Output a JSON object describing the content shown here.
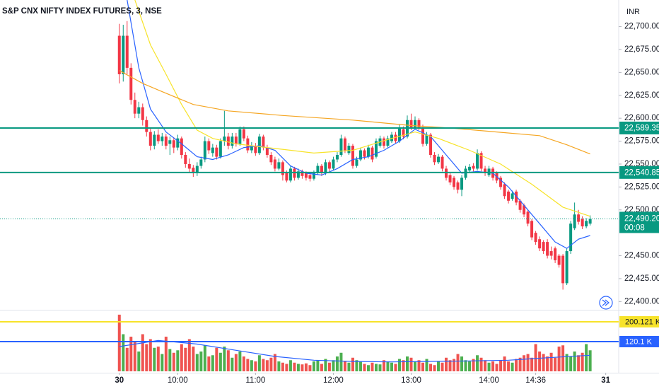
{
  "chart_data": {
    "type": "candlestick",
    "title": "S&P CNX NIFTY INDEX FUTURES, 3, NSE",
    "currency": "INR",
    "up_color": "#089981",
    "down_color": "#f23645",
    "volume_up_color": "#4caf50",
    "volume_down_color": "#ef5350",
    "x": [
      "09:15",
      "09:18",
      "09:21",
      "09:24",
      "09:27",
      "09:30",
      "09:33",
      "09:36",
      "09:39",
      "09:42",
      "09:45",
      "09:48",
      "09:51",
      "09:54",
      "09:57",
      "10:00",
      "10:03",
      "10:06",
      "10:09",
      "10:12",
      "10:15",
      "10:18",
      "10:21",
      "10:24",
      "10:27",
      "10:30",
      "10:33",
      "10:36",
      "10:39",
      "10:42",
      "10:45",
      "10:48",
      "10:51",
      "10:54",
      "10:57",
      "11:00",
      "11:03",
      "11:06",
      "11:09",
      "11:12",
      "11:15",
      "11:18",
      "11:21",
      "11:24",
      "11:27",
      "11:30",
      "11:33",
      "11:36",
      "11:39",
      "11:42",
      "11:45",
      "11:48",
      "11:51",
      "11:54",
      "11:57",
      "12:00",
      "12:03",
      "12:06",
      "12:09",
      "12:12",
      "12:15",
      "12:18",
      "12:21",
      "12:24",
      "12:27",
      "12:30",
      "12:33",
      "12:36",
      "12:39",
      "12:42",
      "12:45",
      "12:48",
      "12:51",
      "12:54",
      "12:57",
      "13:00",
      "13:03",
      "13:06",
      "13:09",
      "13:12",
      "13:15",
      "13:18",
      "13:21",
      "13:24",
      "13:27",
      "13:30",
      "13:33",
      "13:36",
      "13:39",
      "13:42",
      "13:45",
      "13:48",
      "13:51",
      "13:54",
      "13:57",
      "14:00",
      "14:03",
      "14:06",
      "14:09",
      "14:12",
      "14:15",
      "14:18",
      "14:21",
      "14:24",
      "14:27",
      "14:30",
      "14:33",
      "14:36",
      "14:39",
      "14:42",
      "14:45",
      "14:48",
      "14:51",
      "14:54",
      "14:57",
      "15:00",
      "15:03",
      "15:06",
      "15:09",
      "15:12",
      "15:15",
      "15:18"
    ],
    "open": [
      22690,
      22648,
      22690,
      22655,
      22620,
      22605,
      22612,
      22598,
      22585,
      22570,
      22582,
      22575,
      22580,
      22572,
      22576,
      22568,
      22578,
      22560,
      22550,
      22546,
      22540,
      22548,
      22555,
      22575,
      22562,
      22568,
      22558,
      22575,
      22580,
      22570,
      22580,
      22572,
      22588,
      22578,
      22565,
      22570,
      22562,
      22580,
      22568,
      22560,
      22555,
      22545,
      22552,
      22540,
      22532,
      22545,
      22535,
      22542,
      22540,
      22538,
      22534,
      22540,
      22548,
      22540,
      22552,
      22545,
      22555,
      22560,
      22578,
      22562,
      22570,
      22548,
      22555,
      22565,
      22558,
      22568,
      22558,
      22570,
      22578,
      22570,
      22575,
      22582,
      22575,
      22588,
      22580,
      22598,
      22590,
      22598,
      22590,
      22572,
      22582,
      22560,
      22552,
      22558,
      22545,
      22538,
      22535,
      22530,
      22522,
      22535,
      22543,
      22548,
      22545,
      22562,
      22545,
      22538,
      22545,
      22540,
      22535,
      22528,
      22520,
      22512,
      22520,
      22510,
      22505,
      22498,
      22488,
      22475,
      22468,
      22465,
      22465,
      22455,
      22458,
      22450,
      22450,
      22420,
      22455,
      22480,
      22495,
      22490,
      22482,
      22485
    ],
    "high": [
      22703,
      22702,
      22706,
      22660,
      22628,
      22618,
      22616,
      22602,
      22590,
      22586,
      22588,
      22584,
      22583,
      22580,
      22579,
      22582,
      22580,
      22563,
      22556,
      22549,
      22552,
      22558,
      22580,
      22578,
      22572,
      22571,
      22578,
      22608,
      22584,
      22584,
      22584,
      22591,
      22591,
      22581,
      22574,
      22573,
      22583,
      22582,
      22571,
      22563,
      22558,
      22556,
      22554,
      22543,
      22548,
      22547,
      22545,
      22544,
      22542,
      22540,
      22543,
      22551,
      22550,
      22555,
      22554,
      22558,
      22563,
      22582,
      22580,
      22573,
      22572,
      22558,
      22568,
      22567,
      22571,
      22570,
      22578,
      22581,
      22580,
      22581,
      22585,
      22585,
      22593,
      22591,
      22603,
      22605,
      22602,
      22600,
      22593,
      22585,
      22584,
      22563,
      22561,
      22560,
      22548,
      22540,
      22537,
      22532,
      22538,
      22548,
      22550,
      22551,
      22566,
      22564,
      22548,
      22548,
      22547,
      22542,
      22537,
      22530,
      22522,
      22521,
      22522,
      22512,
      22507,
      22500,
      22490,
      22477,
      22471,
      22467,
      22468,
      22460,
      22460,
      22452,
      22452,
      22458,
      22488,
      22508,
      22500,
      22493,
      22491,
      22494
    ],
    "low": [
      22638,
      22640,
      22648,
      22615,
      22600,
      22600,
      22592,
      22580,
      22565,
      22566,
      22572,
      22570,
      22566,
      22560,
      22562,
      22565,
      22556,
      22546,
      22541,
      22536,
      22537,
      22545,
      22552,
      22561,
      22558,
      22555,
      22556,
      22570,
      22566,
      22567,
      22569,
      22570,
      22575,
      22562,
      22562,
      22559,
      22560,
      22565,
      22557,
      22549,
      22542,
      22543,
      22532,
      22530,
      22530,
      22532,
      22533,
      22534,
      22532,
      22531,
      22532,
      22538,
      22537,
      22538,
      22542,
      22543,
      22552,
      22558,
      22562,
      22560,
      22545,
      22546,
      22553,
      22555,
      22556,
      22552,
      22556,
      22568,
      22567,
      22568,
      22573,
      22572,
      22573,
      22577,
      22578,
      22587,
      22588,
      22587,
      22569,
      22570,
      22557,
      22549,
      22550,
      22542,
      22532,
      22527,
      22522,
      22518,
      22515,
      22533,
      22541,
      22542,
      22543,
      22542,
      22537,
      22536,
      22532,
      22529,
      22522,
      22512,
      22507,
      22510,
      22505,
      22497,
      22492,
      22482,
      22467,
      22462,
      22455,
      22452,
      22447,
      22446,
      22442,
      22437,
      22413,
      22418,
      22452,
      22478,
      22484,
      22479,
      22480,
      22483
    ],
    "close": [
      22648,
      22690,
      22655,
      22620,
      22605,
      22612,
      22598,
      22585,
      22570,
      22582,
      22575,
      22580,
      22570,
      22576,
      22568,
      22578,
      22560,
      22550,
      22545,
      22540,
      22548,
      22555,
      22575,
      22565,
      22568,
      22558,
      22575,
      22580,
      22570,
      22580,
      22572,
      22588,
      22578,
      22565,
      22570,
      22562,
      22580,
      22568,
      22560,
      22552,
      22545,
      22552,
      22538,
      22532,
      22545,
      22535,
      22542,
      22537,
      22535,
      22534,
      22540,
      22548,
      22540,
      22552,
      22545,
      22555,
      22560,
      22578,
      22565,
      22570,
      22548,
      22555,
      22565,
      22558,
      22568,
      22555,
      22575,
      22578,
      22570,
      22578,
      22582,
      22575,
      22590,
      22580,
      22598,
      22590,
      22598,
      22590,
      22572,
      22582,
      22560,
      22552,
      22558,
      22545,
      22535,
      22530,
      22525,
      22522,
      22535,
      22545,
      22547,
      22545,
      22562,
      22545,
      22540,
      22545,
      22535,
      22532,
      22525,
      22515,
      22510,
      22518,
      22508,
      22500,
      22495,
      22485,
      22470,
      22465,
      22458,
      22455,
      22450,
      22450,
      22445,
      22440,
      22420,
      22455,
      22485,
      22495,
      22487,
      22482,
      22488,
      22490.2
    ],
    "volume": [
      229,
      150,
      95,
      140,
      120,
      80,
      150,
      110,
      130,
      95,
      100,
      70,
      140,
      90,
      75,
      85,
      110,
      95,
      130,
      100,
      70,
      80,
      105,
      60,
      65,
      95,
      75,
      100,
      85,
      55,
      70,
      80,
      60,
      50,
      45,
      40,
      65,
      50,
      45,
      55,
      70,
      40,
      35,
      30,
      45,
      35,
      30,
      28,
      32,
      25,
      40,
      45,
      30,
      50,
      35,
      45,
      60,
      75,
      40,
      35,
      55,
      45,
      40,
      30,
      25,
      35,
      30,
      28,
      45,
      40,
      35,
      30,
      50,
      45,
      60,
      55,
      40,
      45,
      35,
      50,
      30,
      25,
      40,
      35,
      55,
      45,
      50,
      70,
      60,
      45,
      40,
      50,
      65,
      55,
      45,
      35,
      40,
      30,
      45,
      60,
      40,
      35,
      50,
      55,
      65,
      70,
      55,
      110,
      80,
      70,
      60,
      75,
      55,
      100,
      105,
      70,
      60,
      80,
      65,
      75,
      110,
      85
    ],
    "overlays": [
      {
        "color": "#2962ff",
        "x": [
          "09:21",
          "09:30",
          "09:39",
          "09:51",
          "10:03",
          "10:15",
          "10:27",
          "10:39",
          "10:51",
          "11:03",
          "11:15",
          "11:27",
          "11:39",
          "11:51",
          "12:03",
          "12:15",
          "12:27",
          "12:39",
          "12:51",
          "13:03",
          "13:15",
          "13:27",
          "13:39",
          "13:51",
          "14:03",
          "14:15",
          "14:27",
          "14:39",
          "14:51",
          "15:00",
          "15:09",
          "15:18"
        ],
        "values": [
          22729,
          22655,
          22610,
          22585,
          22572,
          22558,
          22555,
          22560,
          22568,
          22570,
          22565,
          22548,
          22540,
          22538,
          22545,
          22555,
          22558,
          22565,
          22575,
          22588,
          22580,
          22560,
          22540,
          22542,
          22540,
          22525,
          22505,
          22485,
          22465,
          22458,
          22468,
          22472
        ]
      },
      {
        "color": "#f7e32a",
        "x": [
          "09:27",
          "09:39",
          "09:51",
          "10:03",
          "10:15",
          "10:27",
          "10:45",
          "11:15",
          "11:45",
          "12:15",
          "12:45",
          "13:03",
          "13:21",
          "13:45",
          "14:09",
          "14:33",
          "14:57",
          "15:18"
        ],
        "values": [
          22729,
          22680,
          22648,
          22615,
          22587,
          22578,
          22572,
          22567,
          22562,
          22565,
          22578,
          22585,
          22578,
          22565,
          22550,
          22528,
          22503,
          22493
        ]
      },
      {
        "color": "#f5a623",
        "x": [
          "09:15",
          "09:33",
          "09:48",
          "10:12",
          "10:39",
          "11:21",
          "12:15",
          "13:00",
          "13:33",
          "14:06",
          "14:39",
          "15:00",
          "15:18"
        ],
        "values": [
          22652,
          22638,
          22629,
          22615,
          22608,
          22603,
          22598,
          22592,
          22589,
          22585,
          22581,
          22571,
          22561
        ]
      }
    ],
    "volume_overlay": {
      "color": "#2962ff",
      "x": [
        "09:15",
        "09:45",
        "10:15",
        "10:45",
        "11:15",
        "11:45",
        "12:15",
        "12:45",
        "13:15",
        "13:45",
        "14:15",
        "14:45",
        "15:18"
      ],
      "values": [
        100,
        125,
        110,
        85,
        60,
        45,
        40,
        38,
        40,
        42,
        45,
        55,
        65
      ]
    },
    "xlim": [
      "07:43",
      "15:40"
    ],
    "xticks": [
      "14:36",
      {
        "value": "09:15",
        "label": "30"
      },
      "10:00",
      "11:00",
      "12:00",
      "13:00",
      "14:00",
      {
        "value": "15:30",
        "label": "31"
      }
    ],
    "ylim": [
      22391,
      22729
    ],
    "yticks": [
      {
        "value": 22700,
        "label": "22,700.00"
      },
      {
        "value": 22675,
        "label": "22,675.00"
      },
      {
        "value": 22650,
        "label": "22,650.00"
      },
      {
        "value": 22625,
        "label": "22,625.00"
      },
      {
        "value": 22600,
        "label": "22,600.00"
      },
      {
        "value": 22575,
        "label": "22,575.00"
      },
      {
        "value": 22550,
        "label": "22,550.00"
      },
      {
        "value": 22525,
        "label": "22,525.00"
      },
      {
        "value": 22500,
        "label": "22,500.00"
      },
      {
        "value": 22450,
        "label": "22,450.00"
      },
      {
        "value": 22425,
        "label": "22,425.00"
      },
      {
        "value": 22400,
        "label": "22,400.00"
      }
    ],
    "volume_ylim": [
      0,
      243
    ],
    "price_lines": [
      {
        "value": 22589.35,
        "label": "22,589.35",
        "color": "#089981"
      },
      {
        "value": 22540.85,
        "label": "22,540.85",
        "color": "#089981"
      }
    ],
    "last_price": {
      "value": 22490.2,
      "label": "22,490.20",
      "countdown": "00:08",
      "color": "#089981"
    },
    "volume_lines": [
      {
        "value": 200.121,
        "label": "200.121 K",
        "color": "#f7e32a",
        "text_color": "#131722"
      },
      {
        "value": 120.1,
        "label": "120.1 K",
        "color": "#2962ff",
        "text_color": "#ffffff"
      }
    ]
  }
}
